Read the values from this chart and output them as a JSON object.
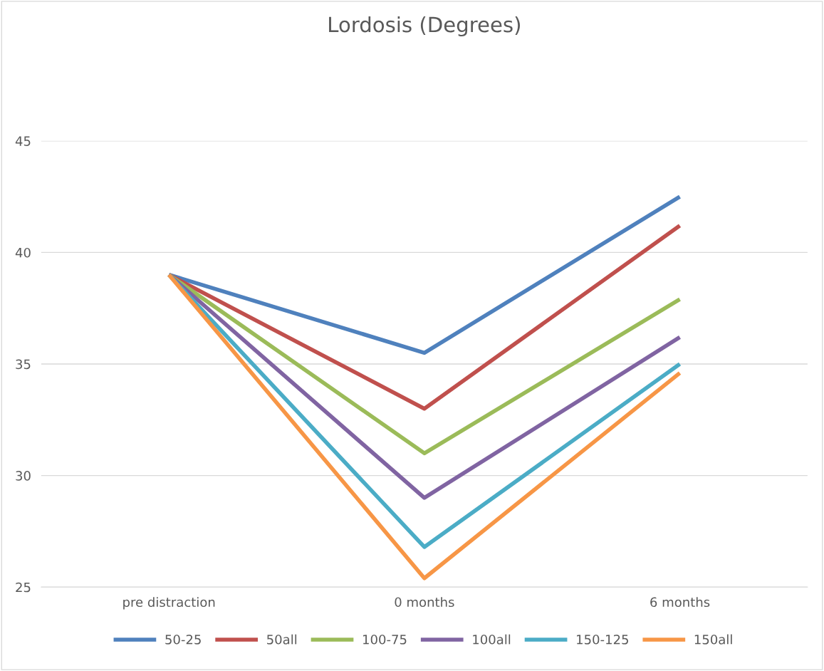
{
  "chart_data": {
    "type": "line",
    "title": "Lordosis (Degrees)",
    "categories": [
      "pre distraction",
      "0 months",
      "6 months"
    ],
    "series": [
      {
        "name": "50-25",
        "color": "#4f81bd",
        "values": [
          39,
          35.5,
          42.5
        ]
      },
      {
        "name": "50all",
        "color": "#c0504d",
        "values": [
          39,
          33,
          41.2
        ]
      },
      {
        "name": "100-75",
        "color": "#9bbb59",
        "values": [
          39,
          31,
          37.9
        ]
      },
      {
        "name": "100all",
        "color": "#8064a2",
        "values": [
          39,
          29,
          36.2
        ]
      },
      {
        "name": "150-125",
        "color": "#4bacc6",
        "values": [
          39,
          26.8,
          35
        ]
      },
      {
        "name": "150all",
        "color": "#f79646",
        "values": [
          39,
          25.4,
          34.6
        ]
      }
    ],
    "ylim": [
      25,
      45
    ],
    "yticks": [
      25,
      30,
      35,
      40,
      45
    ],
    "grid": "y",
    "legend": "bottom",
    "marker": "none",
    "line_style": "solid"
  }
}
